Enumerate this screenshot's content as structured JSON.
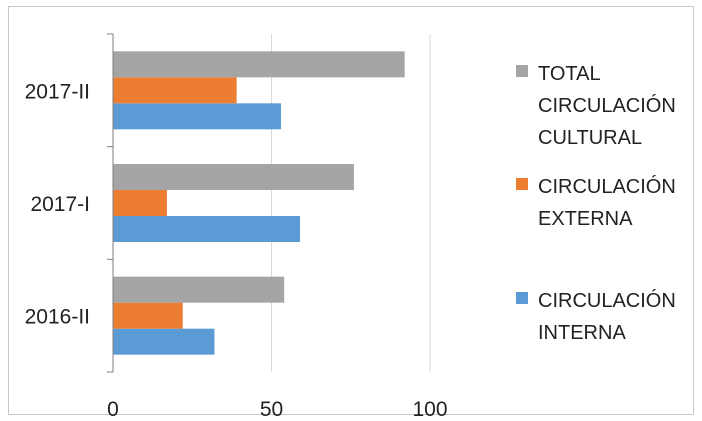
{
  "chart_data": {
    "type": "bar",
    "orientation": "horizontal",
    "categories": [
      "2016-II",
      "2017-I",
      "2017-II"
    ],
    "series": [
      {
        "name": "CIRCULACIÓN INTERNA",
        "values": [
          32,
          59,
          53
        ],
        "color": "#5b9bd5"
      },
      {
        "name": "CIRCULACIÓN EXTERNA",
        "values": [
          22,
          17,
          39
        ],
        "color": "#ed7d31"
      },
      {
        "name": "TOTAL CIRCULACIÓN CULTURAL",
        "values": [
          54,
          76,
          92
        ],
        "color": "#a5a5a5"
      }
    ],
    "xlim": [
      0,
      100
    ],
    "xticks": [
      0,
      50,
      100
    ],
    "grid": true,
    "legend_position": "right",
    "legend": [
      {
        "lines": [
          "TOTAL",
          "CIRCULACIÓN",
          "CULTURAL"
        ],
        "color": "#a5a5a5"
      },
      {
        "lines": [
          "CIRCULACIÓN",
          "EXTERNA"
        ],
        "color": "#ed7d31"
      },
      {
        "lines": [
          "CIRCULACIÓN",
          "INTERNA"
        ],
        "color": "#5b9bd5"
      }
    ]
  }
}
